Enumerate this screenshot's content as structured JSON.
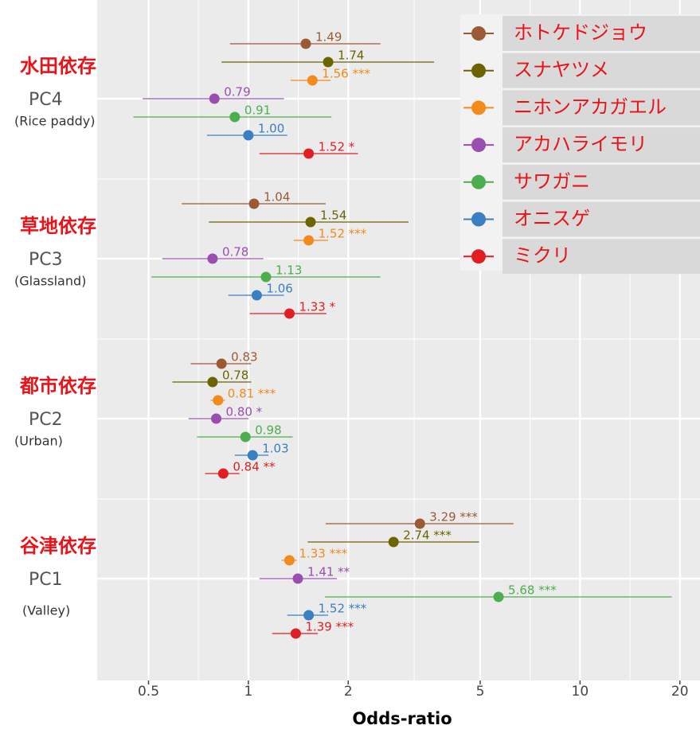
{
  "chart_data": {
    "type": "forest",
    "x_label": "Odds-ratio",
    "log_x": true,
    "grid": true,
    "categories": [
      "PC4",
      "PC3",
      "PC2",
      "PC1"
    ],
    "category_jp": [
      "水田依存",
      "草地依存",
      "都市依存",
      "谷津依存"
    ],
    "category_en": [
      "(Rice paddy)",
      "(Glassland)",
      "(Urban)",
      "(Valley)"
    ],
    "xlim": [
      0.35,
      23
    ],
    "xticks": [
      0.5,
      1,
      2,
      5,
      10,
      20
    ],
    "series": [
      {
        "name": "ホトケドジョウ",
        "color": "#9c5a34",
        "values": [
          1.49,
          1.04,
          0.83,
          3.29
        ],
        "low": [
          0.88,
          0.63,
          0.67,
          1.71
        ],
        "high": [
          2.5,
          1.71,
          1.02,
          6.3
        ],
        "value_labels": [
          "1.49",
          "1.04",
          "0.83",
          "3.29 ***"
        ]
      },
      {
        "name": "スナヤツメ",
        "color": "#6b6400",
        "values": [
          1.74,
          1.54,
          0.78,
          2.74
        ],
        "low": [
          0.83,
          0.76,
          0.59,
          1.51
        ],
        "high": [
          3.63,
          3.04,
          1.02,
          4.96
        ],
        "value_labels": [
          "1.74",
          "1.54",
          "0.78",
          "2.74 ***"
        ]
      },
      {
        "name": "ニホンアカガエル",
        "color": "#f28a1c",
        "values": [
          1.56,
          1.52,
          0.81,
          1.33
        ],
        "low": [
          1.34,
          1.37,
          0.77,
          1.26
        ],
        "high": [
          1.77,
          1.74,
          0.85,
          1.4
        ],
        "value_labels": [
          "1.56 ***",
          "1.52 ***",
          "0.81 ***",
          "1.33 ***"
        ]
      },
      {
        "name": "アカハライモリ",
        "color": "#9a4fb0",
        "values": [
          0.79,
          0.78,
          0.8,
          1.41
        ],
        "low": [
          0.48,
          0.55,
          0.66,
          1.08
        ],
        "high": [
          1.28,
          1.11,
          1.0,
          1.85
        ],
        "value_labels": [
          "0.79",
          "0.78",
          "0.80 *",
          "1.41 **"
        ]
      },
      {
        "name": "サワガニ",
        "color": "#4cae4c",
        "values": [
          0.91,
          1.13,
          0.98,
          5.68
        ],
        "low": [
          0.45,
          0.51,
          0.7,
          1.7
        ],
        "high": [
          1.78,
          2.5,
          1.36,
          18.9
        ],
        "value_labels": [
          "0.91",
          "1.13",
          "0.98",
          "5.68 ***"
        ]
      },
      {
        "name": "オニスゲ",
        "color": "#3a7fc1",
        "values": [
          1.0,
          1.06,
          1.03,
          1.52
        ],
        "low": [
          0.75,
          0.87,
          0.91,
          1.31
        ],
        "high": [
          1.31,
          1.28,
          1.15,
          1.74
        ],
        "value_labels": [
          "1.00",
          "1.06",
          "1.03",
          "1.52 ***"
        ]
      },
      {
        "name": "ミクリ",
        "color": "#e01f22",
        "values": [
          1.52,
          1.33,
          0.84,
          1.39
        ],
        "low": [
          1.08,
          1.01,
          0.74,
          1.18
        ],
        "high": [
          2.14,
          1.72,
          0.94,
          1.62
        ],
        "value_labels": [
          "1.52 *",
          "1.33 *",
          "0.84 **",
          "1.39 ***"
        ]
      }
    ]
  }
}
